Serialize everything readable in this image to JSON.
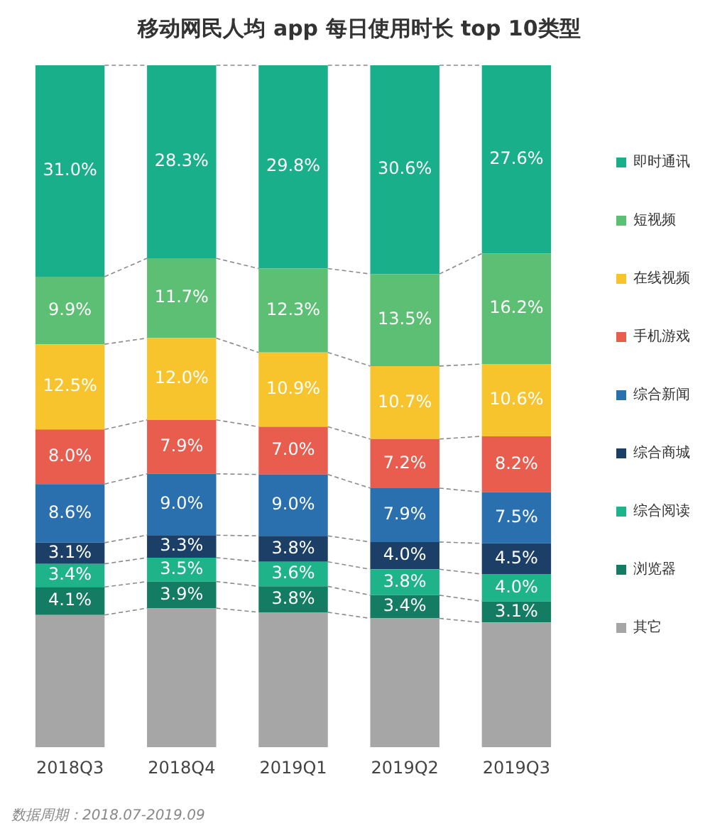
{
  "chart_data": {
    "type": "bar",
    "title": "移动网民人均 app 每日使用时长 top 10类型",
    "categories": [
      "2018Q3",
      "2018Q4",
      "2019Q1",
      "2019Q2",
      "2019Q3"
    ],
    "stacked": true,
    "ylim": [
      0,
      100
    ],
    "tick_labels": "x",
    "grid": false,
    "legend": "right",
    "series": [
      {
        "name": "其它",
        "color": "#a6a6a6",
        "values": [
          19.4,
          20.4,
          19.8,
          18.9,
          18.3
        ],
        "value_labels": [
          null,
          null,
          null,
          null,
          null
        ]
      },
      {
        "name": "浏览器",
        "color": "#137c63",
        "values": [
          4.1,
          3.9,
          3.8,
          3.4,
          3.1
        ],
        "value_labels": [
          "4.1%",
          "3.9%",
          "3.8%",
          "3.4%",
          "3.1%"
        ]
      },
      {
        "name": "综合阅读",
        "color": "#1fb38a",
        "values": [
          3.4,
          3.5,
          3.6,
          3.8,
          4.0
        ],
        "value_labels": [
          "3.4%",
          "3.5%",
          "3.6%",
          "3.8%",
          "4.0%"
        ]
      },
      {
        "name": "综合商城",
        "color": "#1b3f66",
        "values": [
          3.1,
          3.3,
          3.8,
          4.0,
          4.5
        ],
        "value_labels": [
          "3.1%",
          "3.3%",
          "3.8%",
          "4.0%",
          "4.5%"
        ]
      },
      {
        "name": "综合新闻",
        "color": "#2a6fae",
        "values": [
          8.6,
          9.0,
          9.0,
          7.9,
          7.5
        ],
        "value_labels": [
          "8.6%",
          "9.0%",
          "9.0%",
          "7.9%",
          "7.5%"
        ]
      },
      {
        "name": "手机游戏",
        "color": "#e95d4f",
        "values": [
          8.0,
          7.9,
          7.0,
          7.2,
          8.2
        ],
        "value_labels": [
          "8.0%",
          "7.9%",
          "7.0%",
          "7.2%",
          "8.2%"
        ]
      },
      {
        "name": "在线视频",
        "color": "#f8c42d",
        "values": [
          12.5,
          12.0,
          10.9,
          10.7,
          10.6
        ],
        "value_labels": [
          "12.5%",
          "12.0%",
          "10.9%",
          "10.7%",
          "10.6%"
        ]
      },
      {
        "name": "短视频",
        "color": "#5cbf73",
        "values": [
          9.9,
          11.7,
          12.3,
          13.5,
          16.2
        ],
        "value_labels": [
          "9.9%",
          "11.7%",
          "12.3%",
          "13.5%",
          "16.2%"
        ]
      },
      {
        "name": "即时通讯",
        "color": "#1aaf8b",
        "values": [
          31.0,
          28.3,
          29.8,
          30.6,
          27.6
        ],
        "value_labels": [
          "31.0%",
          "28.3%",
          "29.8%",
          "30.6%",
          "27.6%"
        ]
      }
    ],
    "annotations": [
      "数据周期：2018.07-2019.09"
    ]
  }
}
